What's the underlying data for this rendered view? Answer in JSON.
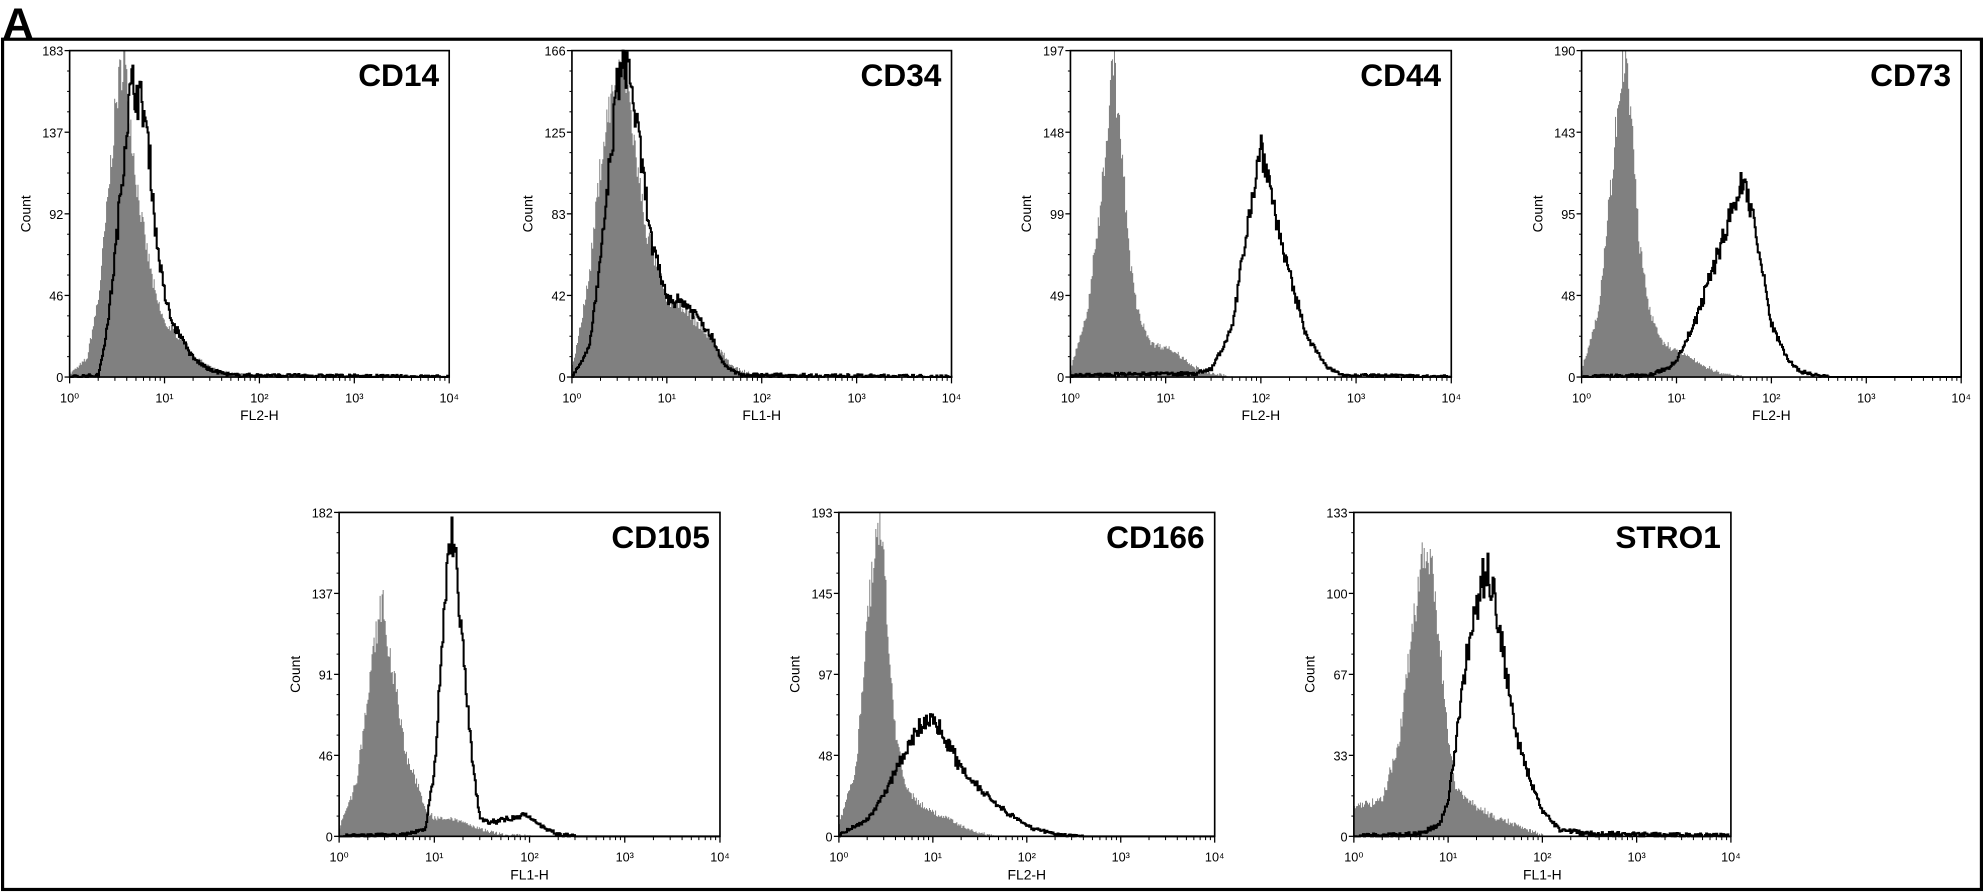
{
  "figure": {
    "panel_letter": "A"
  },
  "colors": {
    "isotype_fill": "#808080",
    "stained_line": "#000000",
    "background": "#ffffff"
  },
  "chart_data": [
    {
      "type": "area",
      "title": "CD14",
      "xlabel": "FL2-H",
      "ylabel": "Count",
      "x_scale": "log",
      "xlim": [
        1,
        10000
      ],
      "ylim": [
        0,
        183
      ],
      "xticks": [
        "10⁰",
        "10¹",
        "10²",
        "10³",
        "10⁴"
      ],
      "yticks": [
        "0",
        "46",
        "92",
        "137",
        "183"
      ],
      "grid": false,
      "series": [
        {
          "style": "filled-gray",
          "points": [
            [
              1,
              2
            ],
            [
              1.5,
              10
            ],
            [
              2,
              45
            ],
            [
              2.5,
              100
            ],
            [
              3,
              150
            ],
            [
              3.5,
              175
            ],
            [
              3.7,
              183
            ],
            [
              4,
              160
            ],
            [
              5,
              110
            ],
            [
              6,
              80
            ],
            [
              8,
              45
            ],
            [
              10,
              30
            ],
            [
              15,
              22
            ],
            [
              20,
              12
            ],
            [
              30,
              5
            ],
            [
              50,
              2
            ],
            [
              100,
              1
            ],
            [
              10000,
              0
            ]
          ]
        },
        {
          "style": "black-line",
          "points": [
            [
              1,
              0
            ],
            [
              2,
              1
            ],
            [
              2.5,
              30
            ],
            [
              3,
              70
            ],
            [
              3.5,
              110
            ],
            [
              4,
              145
            ],
            [
              4.5,
              165
            ],
            [
              5,
              160
            ],
            [
              6,
              150
            ],
            [
              7,
              120
            ],
            [
              8,
              80
            ],
            [
              10,
              45
            ],
            [
              12,
              30
            ],
            [
              15,
              22
            ],
            [
              20,
              10
            ],
            [
              30,
              4
            ],
            [
              50,
              1
            ],
            [
              10000,
              0
            ]
          ]
        }
      ]
    },
    {
      "type": "area",
      "title": "CD34",
      "xlabel": "FL1-H",
      "ylabel": "Count",
      "x_scale": "log",
      "xlim": [
        1,
        10000
      ],
      "ylim": [
        0,
        166
      ],
      "xticks": [
        "10⁰",
        "10¹",
        "10²",
        "10³",
        "10⁴"
      ],
      "yticks": [
        "0",
        "42",
        "83",
        "125",
        "166"
      ],
      "grid": false,
      "series": [
        {
          "style": "filled-gray",
          "points": [
            [
              1,
              5
            ],
            [
              1.5,
              50
            ],
            [
              2,
              110
            ],
            [
              2.5,
              140
            ],
            [
              3,
              150
            ],
            [
              3.5,
              160
            ],
            [
              4,
              140
            ],
            [
              5,
              100
            ],
            [
              6,
              75
            ],
            [
              8,
              55
            ],
            [
              10,
              40
            ],
            [
              15,
              35
            ],
            [
              20,
              28
            ],
            [
              30,
              18
            ],
            [
              50,
              5
            ],
            [
              80,
              1
            ],
            [
              10000,
              0
            ]
          ]
        },
        {
          "style": "black-line",
          "points": [
            [
              1,
              0
            ],
            [
              1.5,
              15
            ],
            [
              2,
              60
            ],
            [
              2.5,
              110
            ],
            [
              3,
              150
            ],
            [
              3.5,
              160
            ],
            [
              4,
              155
            ],
            [
              5,
              120
            ],
            [
              6,
              90
            ],
            [
              7,
              65
            ],
            [
              10,
              40
            ],
            [
              15,
              38
            ],
            [
              20,
              32
            ],
            [
              30,
              20
            ],
            [
              40,
              6
            ],
            [
              60,
              1
            ],
            [
              10000,
              0
            ]
          ]
        }
      ]
    },
    {
      "type": "area",
      "title": "CD44",
      "xlabel": "FL2-H",
      "ylabel": "Count",
      "x_scale": "log",
      "xlim": [
        1,
        10000
      ],
      "ylim": [
        0,
        197
      ],
      "xticks": [
        "10⁰",
        "10¹",
        "10²",
        "10³",
        "10⁴"
      ],
      "yticks": [
        "0",
        "49",
        "99",
        "148",
        "197"
      ],
      "grid": false,
      "series": [
        {
          "style": "filled-gray",
          "points": [
            [
              1,
              5
            ],
            [
              1.5,
              40
            ],
            [
              2,
              100
            ],
            [
              2.5,
              160
            ],
            [
              2.8,
              197
            ],
            [
              3,
              170
            ],
            [
              3.5,
              130
            ],
            [
              4,
              80
            ],
            [
              5,
              40
            ],
            [
              7,
              20
            ],
            [
              10,
              18
            ],
            [
              15,
              12
            ],
            [
              20,
              6
            ],
            [
              30,
              2
            ],
            [
              50,
              0
            ],
            [
              10000,
              0
            ]
          ]
        },
        {
          "style": "black-line",
          "points": [
            [
              1,
              1
            ],
            [
              10,
              2
            ],
            [
              20,
              2
            ],
            [
              30,
              5
            ],
            [
              50,
              30
            ],
            [
              70,
              90
            ],
            [
              90,
              125
            ],
            [
              100,
              140
            ],
            [
              120,
              120
            ],
            [
              150,
              90
            ],
            [
              200,
              60
            ],
            [
              300,
              25
            ],
            [
              500,
              5
            ],
            [
              800,
              1
            ],
            [
              10000,
              0
            ]
          ]
        }
      ]
    },
    {
      "type": "area",
      "title": "CD73",
      "xlabel": "FL2-H",
      "ylabel": "Count",
      "x_scale": "log",
      "xlim": [
        1,
        10000
      ],
      "ylim": [
        0,
        190
      ],
      "xticks": [
        "10⁰",
        "10¹",
        "10²",
        "10³",
        "10⁴"
      ],
      "yticks": [
        "0",
        "48",
        "95",
        "143",
        "190"
      ],
      "grid": false,
      "series": [
        {
          "style": "filled-gray",
          "points": [
            [
              1,
              5
            ],
            [
              1.5,
              40
            ],
            [
              2,
              110
            ],
            [
              2.5,
              170
            ],
            [
              2.8,
              190
            ],
            [
              3,
              175
            ],
            [
              3.5,
              130
            ],
            [
              4,
              80
            ],
            [
              5,
              40
            ],
            [
              7,
              20
            ],
            [
              10,
              15
            ],
            [
              15,
              10
            ],
            [
              20,
              6
            ],
            [
              30,
              2
            ],
            [
              50,
              0
            ],
            [
              10000,
              0
            ]
          ]
        },
        {
          "style": "black-line",
          "points": [
            [
              1,
              0
            ],
            [
              5,
              1
            ],
            [
              8,
              5
            ],
            [
              10,
              10
            ],
            [
              15,
              30
            ],
            [
              20,
              50
            ],
            [
              30,
              80
            ],
            [
              40,
              100
            ],
            [
              50,
              115
            ],
            [
              60,
              100
            ],
            [
              80,
              60
            ],
            [
              100,
              30
            ],
            [
              150,
              10
            ],
            [
              200,
              3
            ],
            [
              400,
              0
            ],
            [
              10000,
              0
            ]
          ]
        }
      ]
    },
    {
      "type": "area",
      "title": "CD105",
      "xlabel": "FL1-H",
      "ylabel": "Count",
      "x_scale": "log",
      "xlim": [
        1,
        10000
      ],
      "ylim": [
        0,
        182
      ],
      "xticks": [
        "10⁰",
        "10¹",
        "10²",
        "10³",
        "10⁴"
      ],
      "yticks": [
        "0",
        "46",
        "91",
        "137",
        "182"
      ],
      "grid": false,
      "series": [
        {
          "style": "filled-gray",
          "points": [
            [
              1,
              5
            ],
            [
              1.5,
              30
            ],
            [
              2,
              80
            ],
            [
              2.5,
              120
            ],
            [
              2.8,
              135
            ],
            [
              3,
              120
            ],
            [
              4,
              80
            ],
            [
              5,
              45
            ],
            [
              6,
              35
            ],
            [
              8,
              15
            ],
            [
              10,
              10
            ],
            [
              15,
              10
            ],
            [
              20,
              8
            ],
            [
              30,
              4
            ],
            [
              50,
              1
            ],
            [
              100,
              0
            ],
            [
              10000,
              0
            ]
          ]
        },
        {
          "style": "black-line",
          "points": [
            [
              1,
              0
            ],
            [
              5,
              1
            ],
            [
              8,
              4
            ],
            [
              10,
              40
            ],
            [
              12,
              110
            ],
            [
              14,
              160
            ],
            [
              15,
              175
            ],
            [
              17,
              150
            ],
            [
              20,
              100
            ],
            [
              25,
              40
            ],
            [
              30,
              10
            ],
            [
              40,
              8
            ],
            [
              60,
              10
            ],
            [
              90,
              12
            ],
            [
              130,
              6
            ],
            [
              200,
              1
            ],
            [
              300,
              0
            ],
            [
              10000,
              0
            ]
          ]
        }
      ]
    },
    {
      "type": "area",
      "title": "CD166",
      "xlabel": "FL2-H",
      "ylabel": "Count",
      "x_scale": "log",
      "xlim": [
        1,
        10000
      ],
      "ylim": [
        0,
        193
      ],
      "xticks": [
        "10⁰",
        "10¹",
        "10²",
        "10³",
        "10⁴"
      ],
      "yticks": [
        "0",
        "48",
        "97",
        "145",
        "193"
      ],
      "grid": false,
      "series": [
        {
          "style": "filled-gray",
          "points": [
            [
              1,
              8
            ],
            [
              1.5,
              40
            ],
            [
              2,
              130
            ],
            [
              2.5,
              180
            ],
            [
              2.7,
              193
            ],
            [
              3,
              160
            ],
            [
              3.5,
              100
            ],
            [
              4,
              60
            ],
            [
              5,
              30
            ],
            [
              7,
              20
            ],
            [
              10,
              14
            ],
            [
              15,
              10
            ],
            [
              20,
              6
            ],
            [
              30,
              2
            ],
            [
              50,
              0
            ],
            [
              10000,
              0
            ]
          ]
        },
        {
          "style": "black-line",
          "points": [
            [
              1,
              1
            ],
            [
              2,
              10
            ],
            [
              3,
              25
            ],
            [
              5,
              50
            ],
            [
              7,
              65
            ],
            [
              10,
              70
            ],
            [
              13,
              60
            ],
            [
              20,
              40
            ],
            [
              30,
              30
            ],
            [
              50,
              18
            ],
            [
              100,
              6
            ],
            [
              200,
              1
            ],
            [
              400,
              0
            ],
            [
              10000,
              0
            ]
          ]
        }
      ]
    },
    {
      "type": "area",
      "title": "STRO1",
      "xlabel": "FL1-H",
      "ylabel": "Count",
      "x_scale": "log",
      "xlim": [
        1,
        10000
      ],
      "ylim": [
        0,
        133
      ],
      "xticks": [
        "10⁰",
        "10¹",
        "10²",
        "10³",
        "10⁴"
      ],
      "yticks": [
        "0",
        "33",
        "67",
        "100",
        "133"
      ],
      "grid": false,
      "series": [
        {
          "style": "filled-gray",
          "points": [
            [
              1,
              12
            ],
            [
              2,
              15
            ],
            [
              3,
              40
            ],
            [
              4,
              80
            ],
            [
              5,
              110
            ],
            [
              6,
              120
            ],
            [
              7,
              105
            ],
            [
              8,
              80
            ],
            [
              10,
              40
            ],
            [
              12,
              20
            ],
            [
              20,
              12
            ],
            [
              30,
              8
            ],
            [
              50,
              5
            ],
            [
              80,
              2
            ],
            [
              100,
              0
            ],
            [
              10000,
              0
            ]
          ]
        },
        {
          "style": "black-line",
          "points": [
            [
              1,
              0
            ],
            [
              5,
              1
            ],
            [
              8,
              5
            ],
            [
              10,
              15
            ],
            [
              12,
              40
            ],
            [
              15,
              70
            ],
            [
              20,
              95
            ],
            [
              25,
              110
            ],
            [
              30,
              100
            ],
            [
              40,
              70
            ],
            [
              50,
              45
            ],
            [
              70,
              25
            ],
            [
              100,
              10
            ],
            [
              150,
              3
            ],
            [
              300,
              1
            ],
            [
              10000,
              0
            ]
          ]
        }
      ]
    }
  ]
}
